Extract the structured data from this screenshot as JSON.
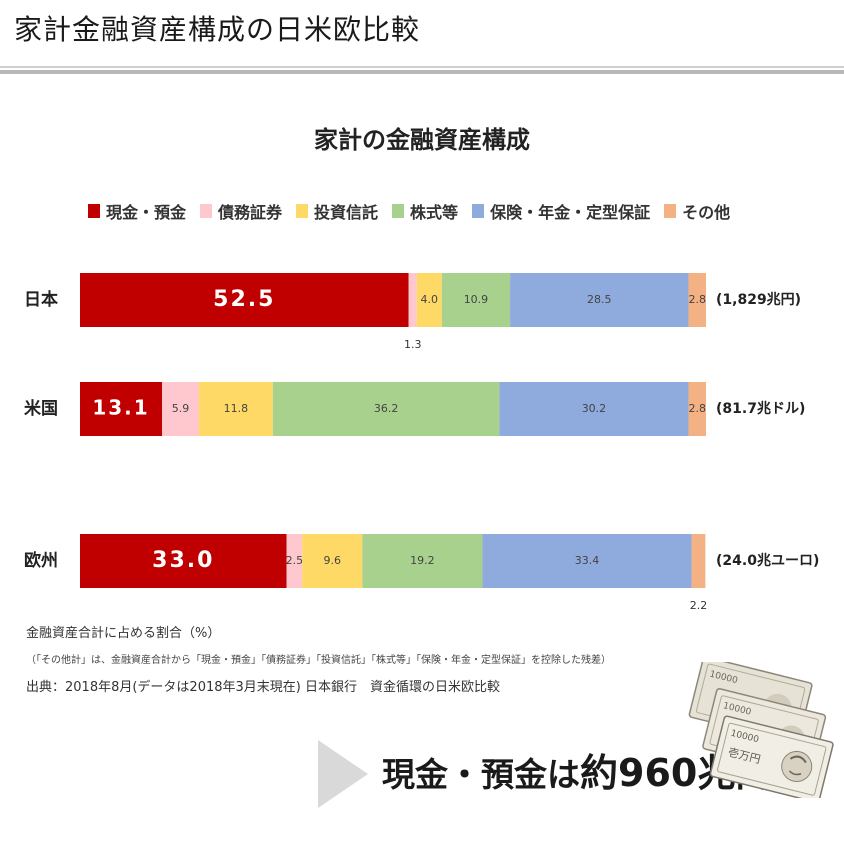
{
  "page": {
    "title": "家計金融資産構成の日米欧比較"
  },
  "chart_data": {
    "type": "bar",
    "stacked": true,
    "orientation": "horizontal",
    "title": "家計の金融資産構成",
    "categories": [
      "日本",
      "米国",
      "欧州"
    ],
    "totals": [
      "(1,829兆円)",
      "(81.7兆ドル)",
      "(24.0兆ユーロ)"
    ],
    "series": [
      {
        "name": "現金・預金",
        "color": "#c00000",
        "values": [
          52.5,
          13.1,
          33.0
        ]
      },
      {
        "name": "債務証券",
        "color": "#ffc7ce",
        "values": [
          1.3,
          5.9,
          2.5
        ]
      },
      {
        "name": "投資信託",
        "color": "#ffd966",
        "values": [
          4.0,
          11.8,
          9.6
        ]
      },
      {
        "name": "株式等",
        "color": "#a9d18e",
        "values": [
          10.9,
          36.2,
          19.2
        ]
      },
      {
        "name": "保険・年金・定型保証",
        "color": "#8faadc",
        "values": [
          28.5,
          30.2,
          33.4
        ]
      },
      {
        "name": "その他",
        "color": "#f4b183",
        "values": [
          2.8,
          2.8,
          2.2
        ]
      }
    ],
    "xlim": [
      0,
      100
    ],
    "grid": false,
    "legend_position": "top"
  },
  "notes": {
    "unit": "金融資産合計に占める割合（%）",
    "other_definition": "（「その他計」は、金融資産合計から「現金・預金」「債務証券」「投資信託」「株式等」「保険・年金・定型保証」を控除した残差）",
    "source": "出典：2018年8月(データは2018年3月末現在) 日本銀行　資金循環の日米欧比較"
  },
  "headline": {
    "prefix": "現金・預金は",
    "amount": "約960兆円"
  },
  "illustration": {
    "icon": "yen-banknotes-icon",
    "note_value": "10000",
    "note_label": "壱万円"
  }
}
